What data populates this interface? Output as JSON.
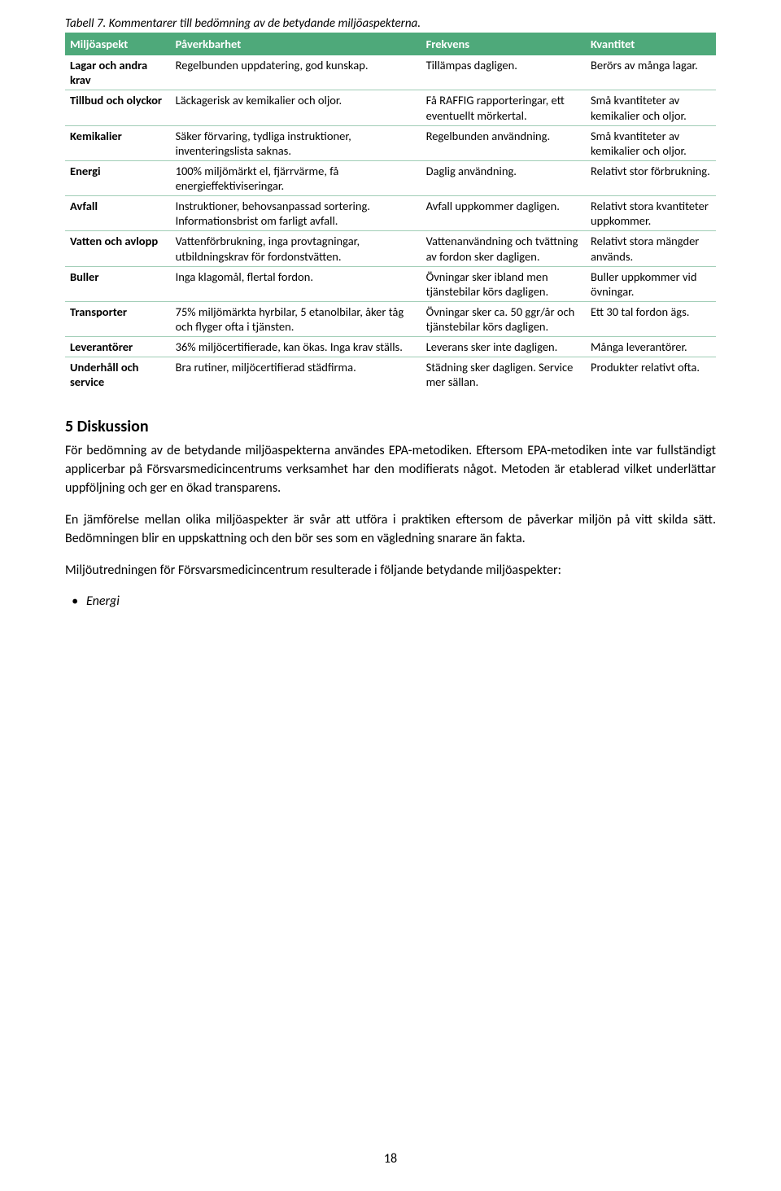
{
  "caption": "Tabell 7. Kommentarer till bedömning av de betydande miljöaspekterna.",
  "table": {
    "headers": [
      "Miljöaspekt",
      "Påverkbarhet",
      "Frekvens",
      "Kvantitet"
    ],
    "header_bg": "#4ea97a",
    "header_fg": "#ffffff",
    "row_border": "#a0cdb6",
    "rows": [
      {
        "aspekt": "Lagar och andra krav",
        "pav": "Regelbunden uppdatering, god kunskap.",
        "fre": "Tillämpas dagligen.",
        "kva": "Berörs av många lagar."
      },
      {
        "aspekt": "Tillbud och olyckor",
        "pav": "Läckagerisk av kemikalier och oljor.",
        "fre": "Få RAFFIG rapporteringar, ett eventuellt mörkertal.",
        "kva": "Små kvantiteter av kemikalier och oljor."
      },
      {
        "aspekt": "Kemikalier",
        "pav": "Säker förvaring, tydliga instruktioner, inventeringslista saknas.",
        "fre": "Regelbunden användning.",
        "kva": "Små kvantiteter av kemikalier och oljor."
      },
      {
        "aspekt": "Energi",
        "pav": "100% miljömärkt el, fjärrvärme, få energieffektiviseringar.",
        "fre": "Daglig användning.",
        "kva": "Relativt stor förbrukning."
      },
      {
        "aspekt": "Avfall",
        "pav": "Instruktioner, behovsanpassad sortering. Informationsbrist om farligt avfall.",
        "fre": "Avfall uppkommer dagligen.",
        "kva": "Relativt stora kvantiteter uppkommer."
      },
      {
        "aspekt": "Vatten och avlopp",
        "pav": "Vattenförbrukning, inga provtagningar, utbildningskrav för fordonstvätten.",
        "fre": "Vattenanvändning och tvättning av fordon sker dagligen.",
        "kva": "Relativt stora mängder används."
      },
      {
        "aspekt": "Buller",
        "pav": "Inga klagomål, flertal fordon.",
        "fre": "Övningar sker ibland men tjänstebilar körs dagligen.",
        "kva": "Buller uppkommer  vid övningar."
      },
      {
        "aspekt": "Transporter",
        "pav": "75% miljömärkta hyrbilar, 5 etanolbilar, åker tåg och flyger ofta i tjänsten.",
        "fre": "Övningar sker ca. 50 ggr/år och tjänstebilar körs dagligen.",
        "kva": "Ett 30 tal fordon ägs."
      },
      {
        "aspekt": "Leverantörer",
        "pav": "36% miljöcertifierade, kan ökas. Inga krav ställs.",
        "fre": "Leverans sker inte dagligen.",
        "kva": "Många leverantörer."
      },
      {
        "aspekt": "Underhåll och service",
        "pav": "Bra rutiner, miljöcertifierad städfirma.",
        "fre": "Städning sker dagligen. Service mer sällan.",
        "kva": "Produkter relativt ofta."
      }
    ]
  },
  "section_title": "5 Diskussion",
  "paragraphs": [
    "För bedömning av de betydande miljöaspekterna användes EPA-metodiken. Eftersom EPA-metodiken inte var fullständigt applicerbar på Försvarsmedicincentrums verksamhet har den modifierats något. Metoden är etablerad vilket underlättar uppföljning och ger en ökad transparens.",
    "En jämförelse mellan olika miljöaspekter är svår att utföra i praktiken eftersom de påverkar miljön på vitt skilda sätt. Bedömningen blir en uppskattning och den bör ses som en vägledning snarare än fakta.",
    "Miljöutredningen för Försvarsmedicincentrum resulterade i följande betydande miljöaspekter:"
  ],
  "bullet": "Energi",
  "page_number": "18"
}
